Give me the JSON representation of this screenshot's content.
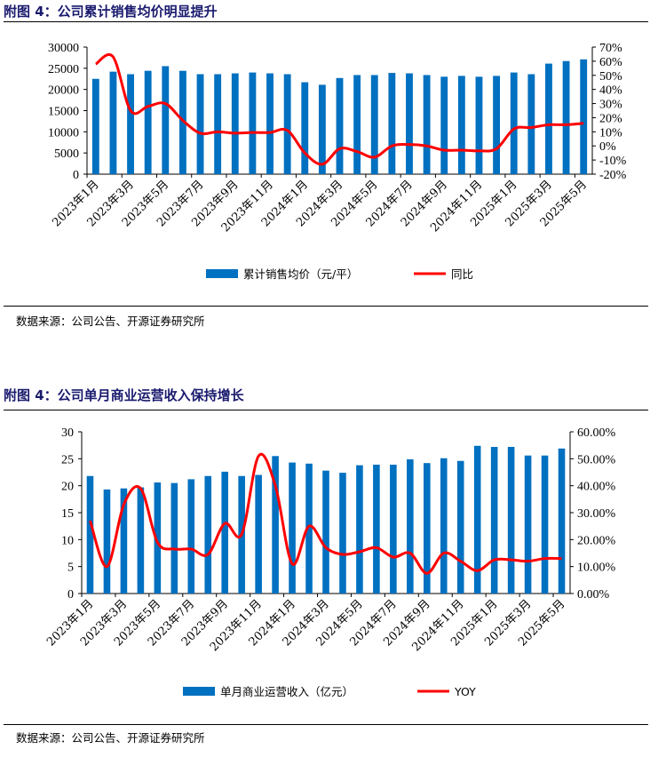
{
  "chart_data": [
    {
      "type": "bar+line",
      "title": "附图 4：公司累计销售均价明显提升",
      "categories": [
        "2023年1月",
        "2023年2月",
        "2023年3月",
        "2023年4月",
        "2023年5月",
        "2023年6月",
        "2023年7月",
        "2023年8月",
        "2023年9月",
        "2023年10月",
        "2023年11月",
        "2023年12月",
        "2024年1月",
        "2024年2月",
        "2024年3月",
        "2024年4月",
        "2024年5月",
        "2024年6月",
        "2024年7月",
        "2024年8月",
        "2024年9月",
        "2024年10月",
        "2024年11月",
        "2024年12月",
        "2025年1月",
        "2025年2月",
        "2025年3月",
        "2025年4月",
        "2025年5月"
      ],
      "xtick_labels": [
        "2023年1月",
        "2023年3月",
        "2023年5月",
        "2023年7月",
        "2023年9月",
        "2023年11月",
        "2024年1月",
        "2024年3月",
        "2024年5月",
        "2024年7月",
        "2024年9月",
        "2024年11月",
        "2025年1月",
        "2025年3月",
        "2025年5月"
      ],
      "series": [
        {
          "name": "累计销售均价（元/平）",
          "kind": "bar",
          "axis": "left",
          "color": "#0070c0",
          "values": [
            22500,
            24200,
            23600,
            24400,
            25500,
            24400,
            23600,
            23600,
            23800,
            24000,
            23800,
            23600,
            21700,
            21100,
            22700,
            23400,
            23400,
            23900,
            23800,
            23400,
            23000,
            23200,
            23000,
            23200,
            24000,
            23600,
            26100,
            26700,
            27100
          ]
        },
        {
          "name": "同比",
          "kind": "line",
          "axis": "right",
          "color": "#ff0000",
          "values": [
            58,
            63,
            25,
            28,
            30,
            18,
            9,
            10,
            9,
            9.5,
            9.5,
            11,
            -5,
            -13,
            -2,
            -4,
            -8,
            0,
            1,
            0,
            -3,
            -3,
            -3.5,
            -2,
            12,
            13,
            15,
            15,
            16
          ]
        }
      ],
      "ylim_left": [
        0,
        30000
      ],
      "yticks_left": [
        "0",
        "5000",
        "10000",
        "15000",
        "20000",
        "25000",
        "30000"
      ],
      "ylim_right": [
        -20,
        70
      ],
      "yticks_right": [
        "-20%",
        "-10%",
        "0%",
        "10%",
        "20%",
        "30%",
        "40%",
        "50%",
        "60%",
        "70%"
      ],
      "legend": "bottom",
      "source": "数据来源：公司公告、开源证券研究所"
    },
    {
      "type": "bar+line",
      "title": "附图 4：公司单月商业运营收入保持增长",
      "categories": [
        "2023年1月",
        "2023年2月",
        "2023年3月",
        "2023年4月",
        "2023年5月",
        "2023年6月",
        "2023年7月",
        "2023年8月",
        "2023年9月",
        "2023年10月",
        "2023年11月",
        "2023年12月",
        "2024年1月",
        "2024年2月",
        "2024年3月",
        "2024年4月",
        "2024年5月",
        "2024年6月",
        "2024年7月",
        "2024年8月",
        "2024年9月",
        "2024年10月",
        "2024年11月",
        "2024年12月",
        "2025年1月",
        "2025年2月",
        "2025年3月",
        "2025年4月",
        "2025年5月"
      ],
      "xtick_labels": [
        "2023年1月",
        "2023年3月",
        "2023年5月",
        "2023年7月",
        "2023年9月",
        "2023年11月",
        "2024年1月",
        "2024年3月",
        "2024年5月",
        "2024年7月",
        "2024年9月",
        "2024年11月",
        "2025年1月",
        "2025年3月",
        "2025年5月"
      ],
      "series": [
        {
          "name": "单月商业运营收入（亿元）",
          "kind": "bar",
          "axis": "left",
          "color": "#0070c0",
          "values": [
            21.8,
            19.3,
            19.5,
            19.7,
            20.6,
            20.5,
            21.2,
            21.8,
            22.6,
            21.8,
            22.0,
            25.5,
            24.3,
            24.1,
            22.8,
            22.4,
            23.8,
            23.9,
            23.9,
            24.9,
            24.2,
            25.1,
            24.6,
            27.4,
            27.2,
            27.2,
            25.6,
            25.6,
            26.9
          ]
        },
        {
          "name": "YOY",
          "kind": "line",
          "axis": "right",
          "color": "#ff0000",
          "values": [
            27,
            10,
            33,
            39,
            19,
            16.5,
            16.5,
            14.5,
            26,
            22,
            51,
            40,
            11,
            25,
            17,
            14.5,
            15.5,
            17,
            13.5,
            15,
            7.5,
            15,
            12,
            8.5,
            12.5,
            12.5,
            12,
            13,
            13
          ]
        }
      ],
      "ylim_left": [
        0,
        30
      ],
      "yticks_left": [
        "0",
        "5",
        "10",
        "15",
        "20",
        "25",
        "30"
      ],
      "ylim_right": [
        0,
        60
      ],
      "yticks_right": [
        "0.00%",
        "10.00%",
        "20.00%",
        "30.00%",
        "40.00%",
        "50.00%",
        "60.00%"
      ],
      "legend": "bottom",
      "source": "数据来源：公司公告、开源证券研究所"
    }
  ]
}
